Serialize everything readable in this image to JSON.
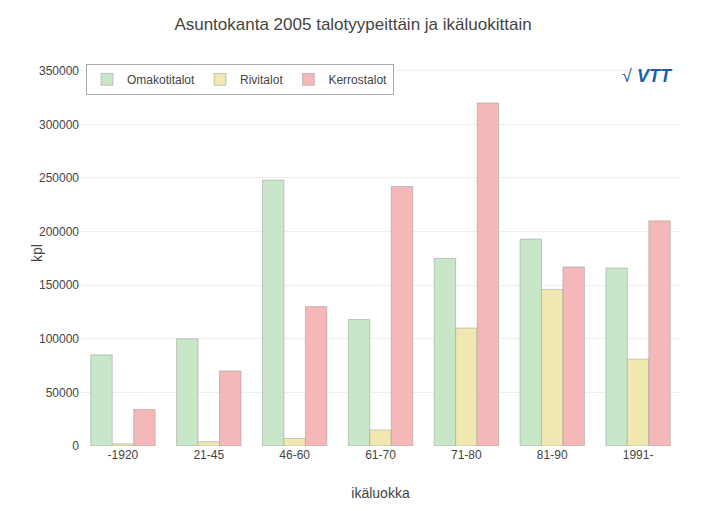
{
  "chart_data": {
    "type": "bar",
    "title": "Asuntokanta 2005 talotyypeittäin ja ikäluokittain",
    "x_label": "ikäluokka",
    "y_label": "kpl",
    "categories": [
      "-1920",
      "21-45",
      "46-60",
      "61-70",
      "71-80",
      "81-90",
      "1991-"
    ],
    "series": [
      {
        "name": "Omakotitalot",
        "color": "#c8e6c8",
        "values": [
          85000,
          100000,
          248000,
          118000,
          175000,
          193000,
          166000
        ]
      },
      {
        "name": "Rivitalot",
        "color": "#f0e8b0",
        "values": [
          2000,
          4000,
          7000,
          15000,
          110000,
          146000,
          81000
        ]
      },
      {
        "name": "Kerrostalot",
        "color": "#f4b8b8",
        "values": [
          34000,
          70000,
          130000,
          242000,
          320000,
          167000,
          210000
        ]
      }
    ],
    "ylim": [
      0,
      360000
    ],
    "yticks": [
      0,
      50000,
      100000,
      150000,
      200000,
      250000,
      300000,
      350000
    ],
    "grid": true,
    "legend": "upper left",
    "annotations": [
      {
        "text": "√",
        "color": "#1a5fa8"
      },
      {
        "text": "VTT",
        "color": "#1a5fa8"
      }
    ]
  }
}
